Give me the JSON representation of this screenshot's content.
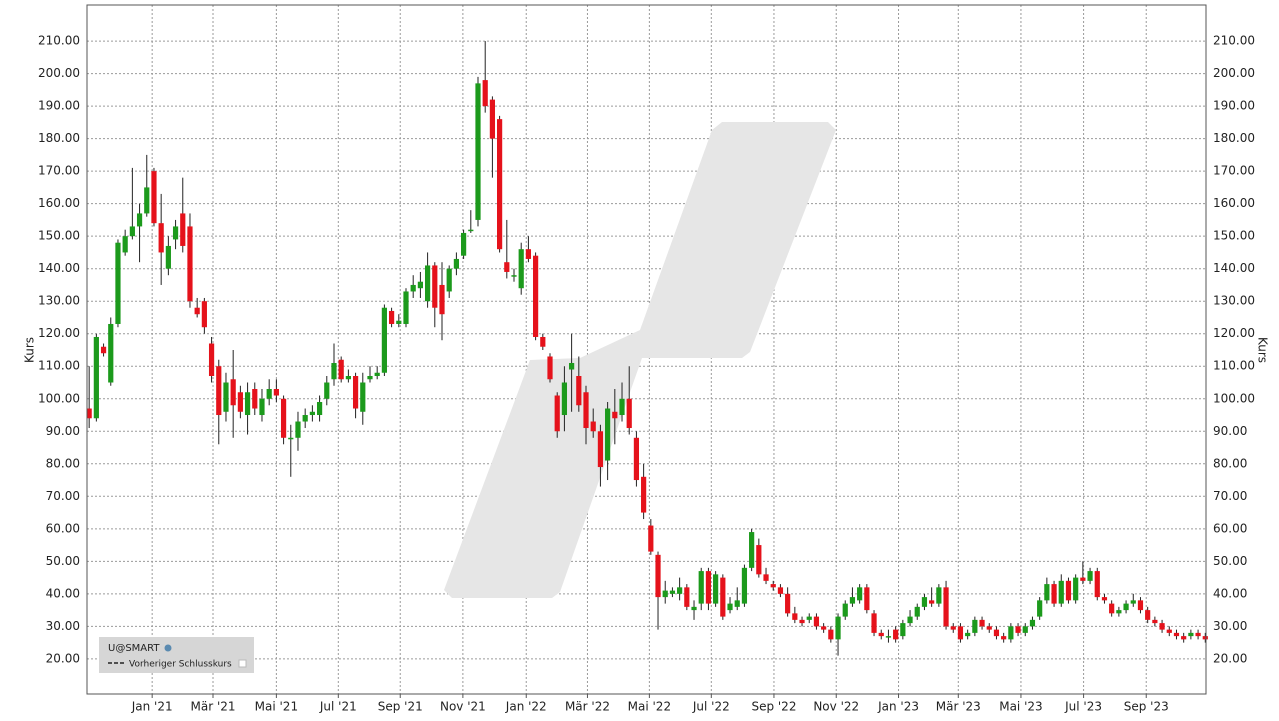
{
  "chart_data": {
    "type": "candlestick",
    "ylabel": "Kurs",
    "legend_title": "U@SMART",
    "legend_entry": "Vorheriger Schlusskurs",
    "up_color": "#1c9a1c",
    "down_color": "#e5121b",
    "grid": true,
    "ylim": [
      9.2,
      221.1
    ],
    "yticks": [
      {
        "value": 20,
        "label": "20.00"
      },
      {
        "value": 30,
        "label": "30.00"
      },
      {
        "value": 40,
        "label": "40.00"
      },
      {
        "value": 50,
        "label": "50.00"
      },
      {
        "value": 60,
        "label": "60.00"
      },
      {
        "value": 70,
        "label": "70.00"
      },
      {
        "value": 80,
        "label": "80.00"
      },
      {
        "value": 90,
        "label": "90.00"
      },
      {
        "value": 100,
        "label": "100.00"
      },
      {
        "value": 110,
        "label": "110.00"
      },
      {
        "value": 120,
        "label": "120.00"
      },
      {
        "value": 130,
        "label": "130.00"
      },
      {
        "value": 140,
        "label": "140.00"
      },
      {
        "value": 150,
        "label": "150.00"
      },
      {
        "value": 160,
        "label": "160.00"
      },
      {
        "value": 170,
        "label": "170.00"
      },
      {
        "value": 180,
        "label": "180.00"
      },
      {
        "value": 190,
        "label": "190.00"
      },
      {
        "value": 200,
        "label": "200.00"
      },
      {
        "value": 210,
        "label": "210.00"
      }
    ],
    "xlim": [
      -0.3,
      155.1
    ],
    "xticks": [
      {
        "value": 8.75,
        "label": "Jan '21"
      },
      {
        "value": 17.2,
        "label": "Mär '21"
      },
      {
        "value": 26.0,
        "label": "Mai '21"
      },
      {
        "value": 34.6,
        "label": "Jul '21"
      },
      {
        "value": 43.2,
        "label": "Sep '21"
      },
      {
        "value": 51.9,
        "label": "Nov '21"
      },
      {
        "value": 60.7,
        "label": "Jan '22"
      },
      {
        "value": 69.2,
        "label": "Mär '22"
      },
      {
        "value": 77.8,
        "label": "Mai '22"
      },
      {
        "value": 86.4,
        "label": "Jul '22"
      },
      {
        "value": 95.1,
        "label": "Sep '22"
      },
      {
        "value": 103.75,
        "label": "Nov '22"
      },
      {
        "value": 112.4,
        "label": "Jan '23"
      },
      {
        "value": 120.7,
        "label": "Mär '23"
      },
      {
        "value": 129.4,
        "label": "Mai '23"
      },
      {
        "value": 138.1,
        "label": "Jul '23"
      },
      {
        "value": 146.8,
        "label": "Sep '23"
      }
    ],
    "open": [
      97,
      94,
      116,
      105,
      123,
      145,
      150,
      153,
      157,
      170,
      154,
      140,
      149,
      157,
      153,
      128,
      130,
      117,
      110,
      96,
      106,
      102,
      95,
      103,
      95,
      100,
      103,
      100,
      88,
      88,
      93,
      95,
      95,
      100,
      106,
      112,
      106,
      107,
      96,
      106,
      107,
      108,
      127,
      123,
      123,
      133,
      134,
      130,
      141,
      135,
      133,
      140,
      144,
      152,
      155,
      198,
      192,
      186,
      142,
      138,
      134,
      146,
      144,
      119,
      113,
      101,
      95,
      109,
      107,
      102,
      93,
      90,
      81,
      96,
      95,
      100,
      88,
      76,
      61,
      52,
      39,
      40,
      40,
      42,
      35,
      37,
      47,
      37,
      45,
      35,
      36,
      37,
      48,
      55,
      46,
      43,
      42,
      40,
      34,
      32,
      32,
      33,
      30,
      29,
      26,
      33,
      37,
      38,
      42,
      34,
      28,
      27,
      29,
      27,
      31,
      33,
      36,
      38,
      37,
      42,
      30,
      30,
      27,
      28,
      32,
      30,
      29,
      27,
      26,
      30,
      28,
      30,
      33,
      38,
      43,
      37,
      44,
      38,
      45,
      44,
      47,
      39,
      37,
      34,
      35,
      37,
      38,
      35,
      32,
      31,
      29,
      28,
      27,
      27,
      28,
      27
    ],
    "high": [
      110,
      120,
      117,
      125,
      149,
      152,
      171,
      160,
      175,
      171,
      163,
      150,
      155,
      168,
      157,
      131,
      131,
      119,
      112,
      108,
      115,
      104,
      105,
      105,
      103,
      106,
      106,
      101,
      92,
      96,
      97,
      98,
      101,
      107,
      117,
      113,
      109,
      108,
      108,
      110,
      110,
      129,
      128,
      126,
      134,
      138,
      139,
      145,
      142,
      142,
      141,
      145,
      152,
      158,
      199,
      210,
      193,
      187,
      155,
      140,
      148,
      150,
      145,
      120,
      114,
      102,
      110,
      120,
      113,
      104,
      97,
      92,
      99,
      103,
      105,
      110,
      90,
      80,
      63,
      53,
      44,
      42,
      45,
      43,
      38,
      48,
      48,
      47,
      46,
      39,
      42,
      49,
      60,
      57,
      48,
      44,
      43,
      42,
      36,
      33,
      34,
      34,
      31,
      30,
      34,
      38,
      42,
      43,
      43,
      35,
      29,
      29,
      30,
      32,
      35,
      37,
      40,
      42,
      43,
      44,
      31,
      31,
      29,
      33,
      33,
      31,
      30,
      28,
      31,
      31,
      31,
      33,
      39,
      45,
      44,
      46,
      45,
      46,
      50,
      48,
      48,
      40,
      38,
      36,
      38,
      40,
      39,
      36,
      33,
      32,
      30,
      29,
      28,
      29,
      29,
      28
    ],
    "low": [
      91,
      93,
      113,
      104,
      122,
      144,
      149,
      142,
      156,
      153,
      135,
      138,
      146,
      145,
      128,
      125,
      120,
      105,
      86,
      93,
      88,
      94,
      89,
      95,
      93,
      98,
      99,
      86,
      76,
      84,
      91,
      93,
      93,
      98,
      104,
      105,
      105,
      94,
      92,
      105,
      106,
      107,
      122,
      122,
      122,
      131,
      131,
      128,
      122,
      118,
      131,
      138,
      143,
      151,
      153,
      188,
      168,
      145,
      137,
      136,
      132,
      142,
      118,
      115,
      105,
      88,
      90,
      96,
      96,
      86,
      88,
      73,
      75,
      86,
      93,
      89,
      73,
      63,
      52,
      29,
      37,
      39,
      38,
      35,
      32,
      35,
      35,
      36,
      32,
      34,
      35,
      36,
      47,
      45,
      43,
      41,
      39,
      33,
      31,
      30,
      31,
      29,
      28,
      25,
      21,
      32,
      36,
      37,
      34,
      27,
      26,
      25,
      25,
      26,
      30,
      32,
      35,
      36,
      36,
      29,
      28,
      25,
      26,
      27,
      29,
      28,
      26,
      25,
      25,
      27,
      27,
      29,
      32,
      37,
      36,
      36,
      37,
      37,
      43,
      43,
      38,
      37,
      33,
      33,
      34,
      36,
      34,
      31,
      30,
      28,
      27,
      26,
      25,
      26,
      26,
      25
    ],
    "close": [
      94,
      119,
      114,
      123,
      148,
      150,
      153,
      157,
      165,
      154,
      145,
      147,
      153,
      147,
      130,
      126,
      122,
      107,
      95,
      105,
      98,
      96,
      102,
      97,
      100,
      103,
      101,
      88,
      88,
      93,
      95,
      96,
      99,
      105,
      111,
      106,
      107,
      97,
      105,
      107,
      108,
      128,
      123,
      124,
      133,
      135,
      136,
      141,
      128,
      126,
      140,
      143,
      151,
      152,
      197,
      190,
      180,
      146,
      139,
      138,
      146,
      143,
      119,
      116,
      106,
      90,
      105,
      111,
      98,
      91,
      90,
      79,
      97,
      94,
      100,
      91,
      75,
      65,
      53,
      39,
      41,
      41,
      42,
      36,
      36,
      47,
      37,
      46,
      33,
      37,
      38,
      48,
      59,
      46,
      44,
      42,
      40,
      34,
      32,
      31,
      33,
      30,
      29,
      26,
      33,
      37,
      39,
      42,
      35,
      28,
      27,
      27,
      26,
      31,
      33,
      36,
      39,
      37,
      42,
      30,
      29,
      26,
      28,
      32,
      30,
      29,
      27,
      26,
      30,
      28,
      30,
      32,
      38,
      43,
      37,
      44,
      38,
      45,
      44,
      47,
      39,
      38,
      34,
      35,
      37,
      38,
      35,
      32,
      31,
      29,
      28,
      27,
      26,
      28,
      27,
      26
    ]
  }
}
